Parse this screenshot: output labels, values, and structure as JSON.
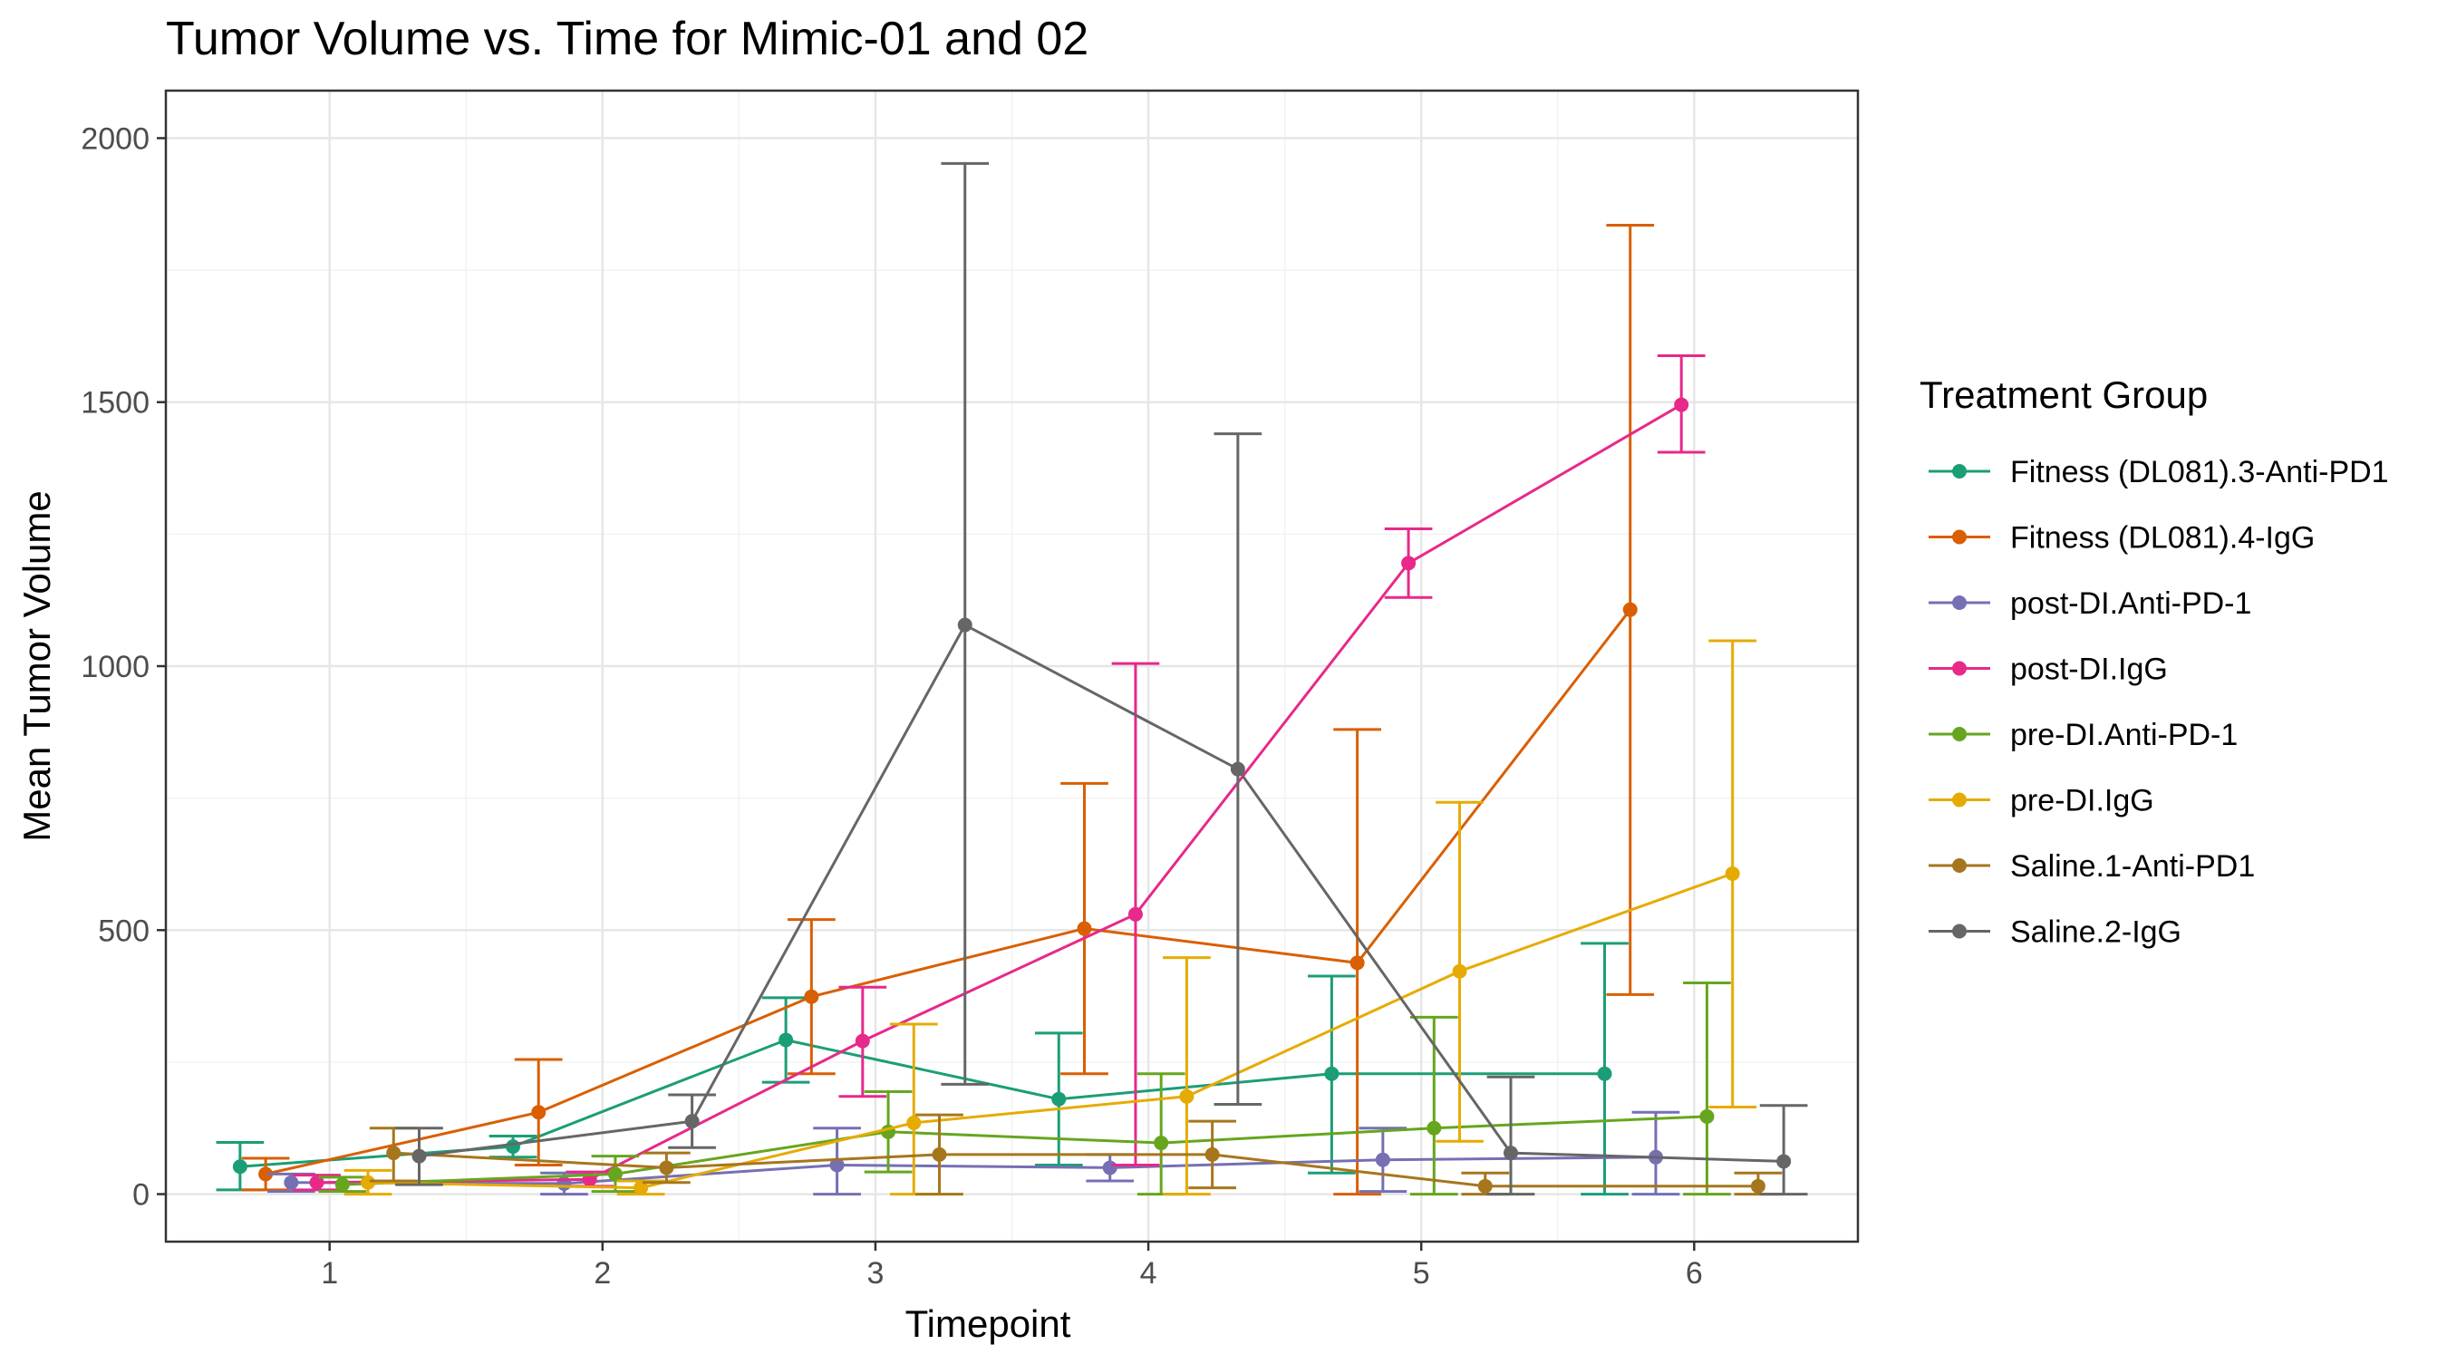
{
  "chart_data": {
    "type": "line",
    "title": "Tumor Volume vs. Time for Mimic-01 and 02",
    "xlabel": "Timepoint",
    "ylabel": "Mean Tumor Volume",
    "xlim": [
      0.4,
      6.6
    ],
    "ylim": [
      -90,
      2090
    ],
    "xticks": [
      1,
      2,
      3,
      4,
      5,
      6
    ],
    "yticks": [
      0,
      500,
      1000,
      1500,
      2000
    ],
    "grid": true,
    "legend_title": "Treatment Group",
    "legend_position": "right",
    "series": [
      {
        "name": "Fitness (DL081).3-Anti-PD1",
        "color": "#1B9E77",
        "x": [
          1,
          2,
          3,
          4,
          5,
          6
        ],
        "y": [
          52,
          90,
          292,
          180,
          228,
          228
        ],
        "lo": [
          8,
          70,
          212,
          55,
          40,
          0
        ],
        "hi": [
          98,
          110,
          372,
          305,
          413,
          475
        ]
      },
      {
        "name": "Fitness (DL081).4-IgG",
        "color": "#D95F02",
        "x": [
          1,
          2,
          3,
          4,
          5,
          6
        ],
        "y": [
          38,
          155,
          374,
          503,
          438,
          1107
        ],
        "lo": [
          8,
          55,
          228,
          228,
          0,
          378
        ],
        "hi": [
          68,
          255,
          520,
          778,
          880,
          1835
        ]
      },
      {
        "name": "post-DI.Anti-PD-1",
        "color": "#7570B3",
        "x": [
          1,
          2,
          3,
          4,
          5,
          6
        ],
        "y": [
          22,
          20,
          55,
          50,
          65,
          70
        ],
        "lo": [
          5,
          0,
          0,
          25,
          5,
          0
        ],
        "hi": [
          38,
          40,
          125,
          75,
          125,
          155
        ]
      },
      {
        "name": "post-DI.IgG",
        "color": "#E7298A",
        "x": [
          1,
          2,
          3,
          4,
          5,
          6
        ],
        "y": [
          22,
          28,
          290,
          530,
          1195,
          1495
        ],
        "lo": [
          8,
          15,
          185,
          55,
          1130,
          1405
        ],
        "hi": [
          36,
          42,
          392,
          1005,
          1260,
          1588
        ]
      },
      {
        "name": "pre-DI.Anti-PD-1",
        "color": "#66A61E",
        "x": [
          1,
          2,
          3,
          4,
          5,
          6
        ],
        "y": [
          18,
          38,
          118,
          97,
          125,
          147
        ],
        "lo": [
          5,
          5,
          42,
          0,
          0,
          0
        ],
        "hi": [
          32,
          72,
          194,
          228,
          335,
          400
        ]
      },
      {
        "name": "pre-DI.IgG",
        "color": "#E6AB02",
        "x": [
          1,
          2,
          3,
          4,
          5,
          6
        ],
        "y": [
          22,
          12,
          135,
          185,
          422,
          607
        ],
        "lo": [
          0,
          0,
          0,
          0,
          100,
          165
        ],
        "hi": [
          45,
          25,
          322,
          448,
          742,
          1048
        ]
      },
      {
        "name": "Saline.1-Anti-PD1",
        "color": "#A6761D",
        "x": [
          1,
          2,
          3,
          4,
          5,
          6
        ],
        "y": [
          78,
          50,
          75,
          75,
          15,
          15
        ],
        "lo": [
          25,
          22,
          0,
          12,
          0,
          0
        ],
        "hi": [
          125,
          78,
          150,
          138,
          40,
          40
        ]
      },
      {
        "name": "Saline.2-IgG",
        "color": "#666666",
        "x": [
          1,
          2,
          3,
          4,
          5,
          6
        ],
        "y": [
          72,
          138,
          1078,
          805,
          78,
          62
        ],
        "lo": [
          18,
          88,
          208,
          170,
          0,
          0
        ],
        "hi": [
          125,
          188,
          1952,
          1440,
          222,
          168
        ]
      }
    ]
  }
}
